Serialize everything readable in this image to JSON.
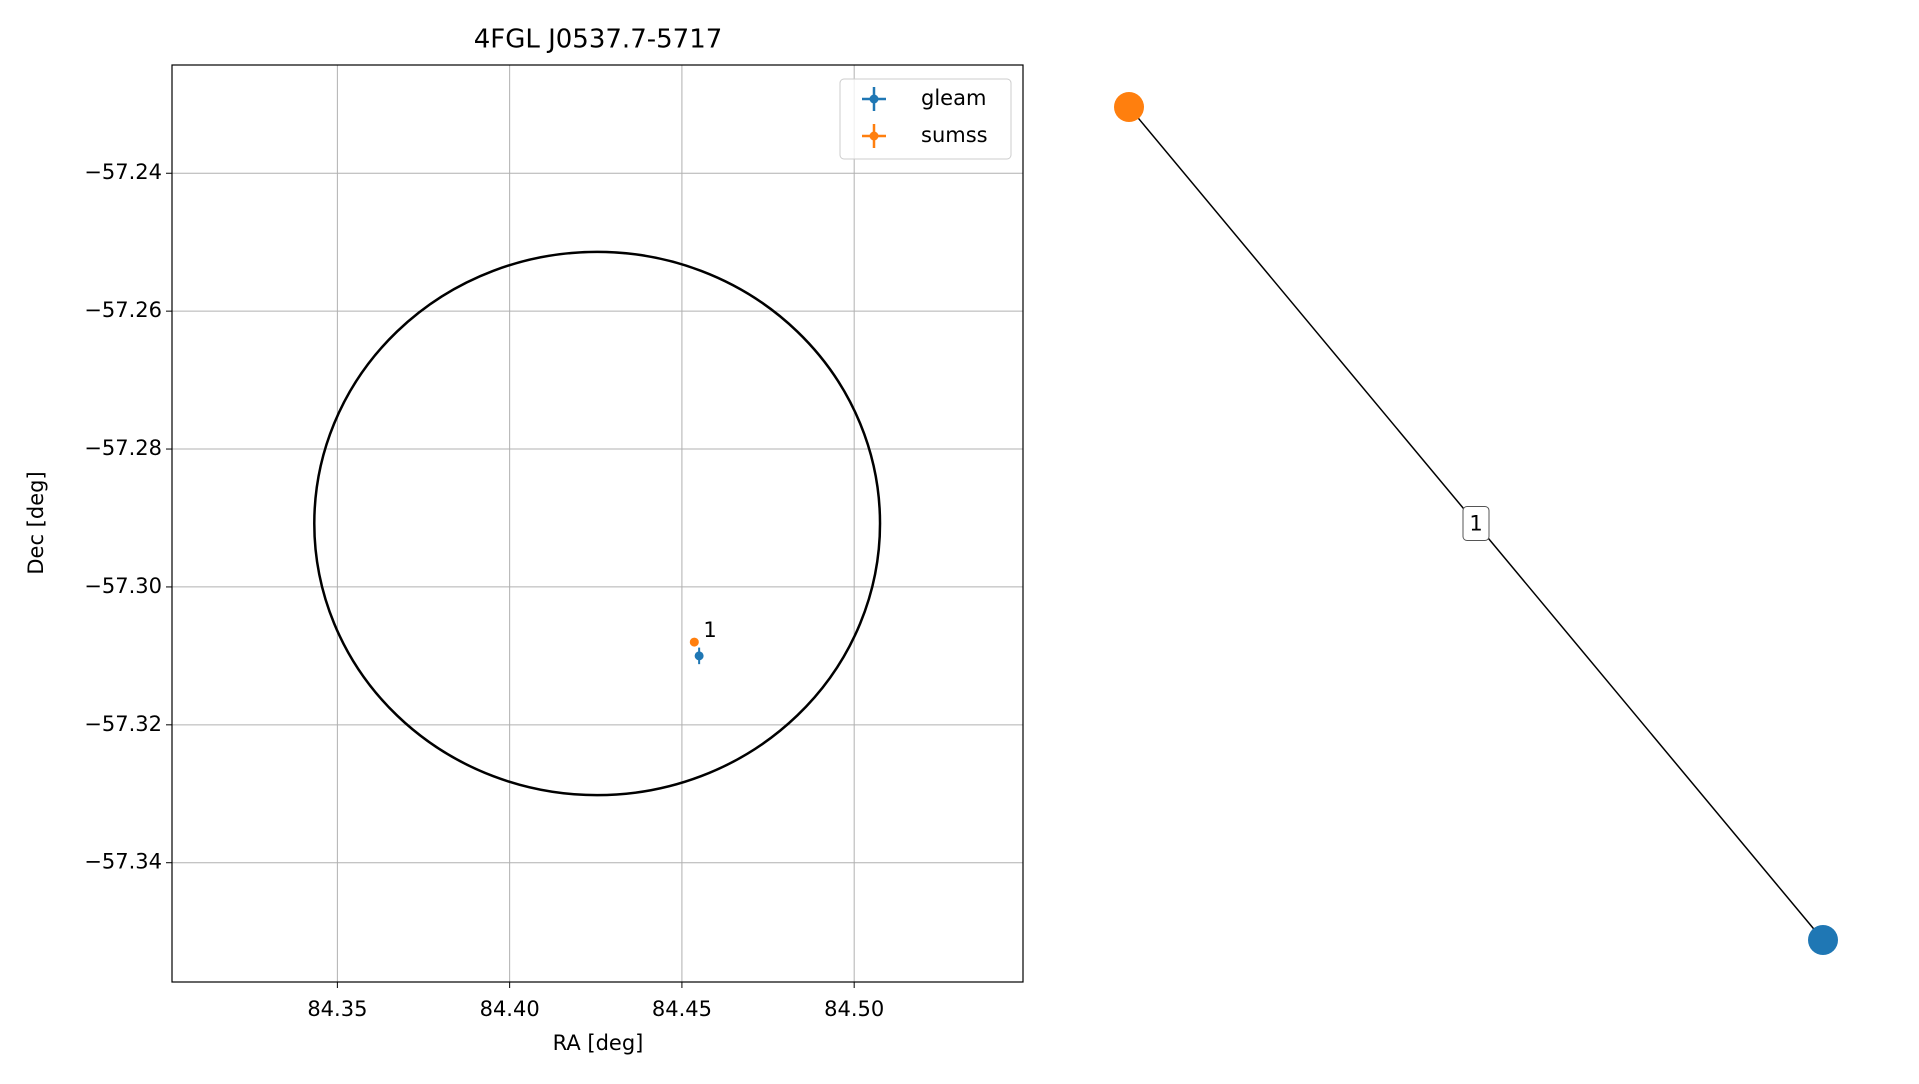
{
  "chart_data": [
    {
      "type": "scatter",
      "title": "4FGL J0537.7-5717",
      "x_label": "RA [deg]",
      "y_label": "Dec [deg]",
      "xlim": [
        84.302,
        84.549
      ],
      "ylim": [
        -57.3573,
        -57.2243
      ],
      "xticks": [
        84.35,
        {
          "value": 84.4,
          "label": "84.40"
        },
        84.45,
        {
          "value": 84.5,
          "label": "84.50"
        }
      ],
      "yticks": [
        {
          "value": -57.24,
          "label": "−57.24"
        },
        {
          "value": -57.26,
          "label": "−57.26"
        },
        {
          "value": -57.28,
          "label": "−57.28"
        },
        {
          "value": -57.3,
          "label": "−57.30"
        },
        {
          "value": -57.32,
          "label": "−57.32"
        },
        {
          "value": -57.34,
          "label": "−57.34"
        }
      ],
      "grid": true,
      "legend": "upper right",
      "circle": {
        "ra": 84.4254,
        "dec": -57.2908,
        "ra_radius": 0.0821,
        "dec_radius": 0.0394,
        "color": "#000000"
      },
      "series": [
        {
          "name": "gleam",
          "color": "#1f77b4",
          "x": [
            84.455
          ],
          "values": [
            -57.31
          ],
          "xerr": [
            0.0005
          ],
          "yerr": [
            0.0012
          ]
        },
        {
          "name": "sumss",
          "color": "#ff7f0e",
          "x": [
            84.4536
          ],
          "values": [
            -57.308
          ],
          "xerr": [
            0.0003
          ],
          "yerr": [
            0.0004
          ]
        }
      ],
      "annotations": [
        {
          "text": "1",
          "series": 1
        }
      ]
    },
    {
      "type": "network",
      "node_colors": [
        "#ff7f0e",
        "#1f77b4"
      ],
      "edge_labels": [
        "1"
      ]
    }
  ]
}
